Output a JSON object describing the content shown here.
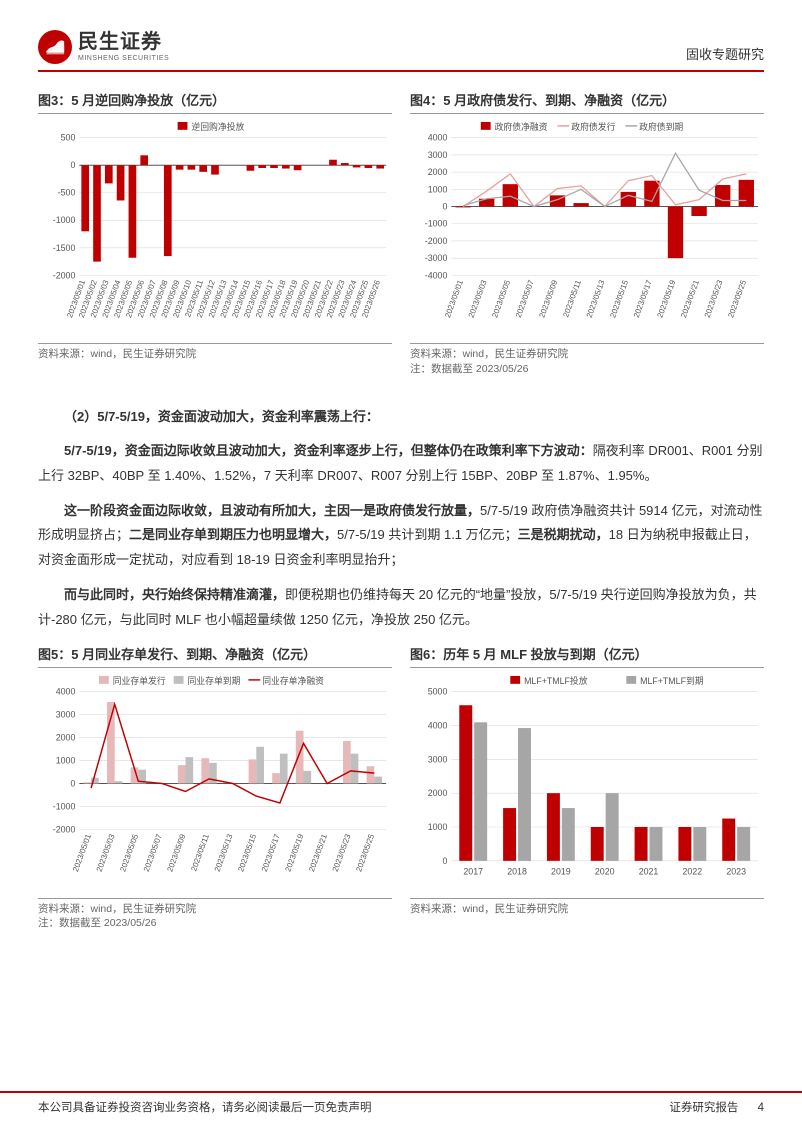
{
  "header": {
    "company_cn": "民生证券",
    "company_en": "MINSHENG SECURITIES",
    "doc_type": "固收专题研究"
  },
  "chart3": {
    "title": "图3：5 月逆回购净投放（亿元）",
    "type": "bar",
    "legend_label": "逆回购净投放",
    "bar_color": "#c00000",
    "grid_color": "#d9d9d9",
    "axis_color": "#555555",
    "background_color": "#ffffff",
    "categories": [
      "2023/05/01",
      "2023/05/02",
      "2023/05/03",
      "2023/05/04",
      "2023/05/05",
      "2023/05/06",
      "2023/05/07",
      "2023/05/08",
      "2023/05/09",
      "2023/05/10",
      "2023/05/11",
      "2023/05/12",
      "2023/05/13",
      "2023/05/14",
      "2023/05/15",
      "2023/05/16",
      "2023/05/17",
      "2023/05/18",
      "2023/05/19",
      "2023/05/20",
      "2023/05/21",
      "2023/05/22",
      "2023/05/23",
      "2023/05/24",
      "2023/05/25",
      "2023/05/26"
    ],
    "values": [
      -1200,
      -1750,
      -330,
      -640,
      -1680,
      180,
      0,
      -1650,
      -80,
      -80,
      -120,
      -170,
      0,
      0,
      -100,
      -50,
      -50,
      -60,
      -90,
      0,
      0,
      100,
      40,
      -40,
      -50,
      -60
    ],
    "ylim": [
      -2000,
      500
    ],
    "ytick_step": 500,
    "source": "资料来源：wind，民生证券研究院"
  },
  "chart4": {
    "title": "图4：5 月政府债发行、到期、净融资（亿元）",
    "type": "bar-line",
    "series": [
      {
        "name": "政府债净融资",
        "type": "bar",
        "color": "#c00000"
      },
      {
        "name": "政府债发行",
        "type": "line",
        "color": "#e6a0a0"
      },
      {
        "name": "政府债到期",
        "type": "line",
        "color": "#a6a6a6"
      }
    ],
    "grid_color": "#d9d9d9",
    "axis_color": "#555555",
    "background_color": "#ffffff",
    "categories": [
      "2023/05/01",
      "2023/05/03",
      "2023/05/05",
      "2023/05/07",
      "2023/05/09",
      "2023/05/11",
      "2023/05/13",
      "2023/05/15",
      "2023/05/17",
      "2023/05/19",
      "2023/05/21",
      "2023/05/23",
      "2023/05/25"
    ],
    "net": [
      -50,
      450,
      1300,
      0,
      650,
      200,
      0,
      850,
      1500,
      -3000,
      -550,
      1250,
      1550
    ],
    "issue": [
      0,
      900,
      1900,
      0,
      1050,
      1200,
      0,
      1500,
      1800,
      100,
      400,
      1600,
      1900
    ],
    "due": [
      50,
      450,
      600,
      0,
      400,
      1000,
      0,
      650,
      300,
      3100,
      950,
      350,
      350
    ],
    "ylim": [
      -4000,
      4000
    ],
    "ytick_step": 1000,
    "source": "资料来源：wind，民生证券研究院",
    "source_note": "注：数据截至 2023/05/26"
  },
  "body": {
    "heading": "（2）5/7-5/19，资金面波动加大，资金利率震荡上行：",
    "p1a": "5/7-5/19，资金面边际收敛且波动加大，资金利率逐步上行，但整体仍在政策利率下方波动：",
    "p1b": "隔夜利率 DR001、R001 分别上行 32BP、40BP 至 1.40%、1.52%，7 天利率 DR007、R007 分别上行 15BP、20BP 至 1.87%、1.95%。",
    "p2a": "这一阶段资金面边际收敛，且波动有所加大，主因一是政府债发行放量，",
    "p2b": "5/7-5/19 政府债净融资共计 5914 亿元，对流动性形成明显挤占；",
    "p2c": "二是同业存单到期压力也明显增大，",
    "p2d": "5/7-5/19 共计到期 1.1 万亿元；",
    "p2e": "三是税期扰动，",
    "p2f": "18 日为纳税申报截止日，对资金面形成一定扰动，对应看到 18-19 日资金利率明显抬升；",
    "p3a": "而与此同时，央行始终保持精准滴灌，",
    "p3b": "即便税期也仍维持每天 20 亿元的“地量”投放，5/7-5/19 央行逆回购净投放为负，共计-280 亿元，与此同时 MLF 也小幅超量续做 1250 亿元，净投放 250 亿元。"
  },
  "chart5": {
    "title": "图5：5 月同业存单发行、到期、净融资（亿元）",
    "type": "bar-line",
    "series": [
      {
        "name": "同业存单发行",
        "type": "bar",
        "color": "#e6b8b7"
      },
      {
        "name": "同业存单到期",
        "type": "bar",
        "color": "#bfbfbf"
      },
      {
        "name": "同业存单净融资",
        "type": "line",
        "color": "#c00000"
      }
    ],
    "grid_color": "#d9d9d9",
    "axis_color": "#555555",
    "background_color": "#ffffff",
    "categories": [
      "2023/05/01",
      "2023/05/03",
      "2023/05/05",
      "2023/05/07",
      "2023/05/09",
      "2023/05/11",
      "2023/05/13",
      "2023/05/15",
      "2023/05/17",
      "2023/05/19",
      "2023/05/21",
      "2023/05/23",
      "2023/05/25"
    ],
    "issue": [
      50,
      3550,
      700,
      0,
      800,
      1100,
      0,
      1050,
      450,
      2300,
      0,
      1850,
      750
    ],
    "due": [
      250,
      100,
      600,
      0,
      1150,
      900,
      0,
      1600,
      1300,
      550,
      0,
      1300,
      300
    ],
    "net": [
      -200,
      3450,
      100,
      0,
      -350,
      200,
      0,
      -550,
      -850,
      1750,
      0,
      550,
      450
    ],
    "ylim": [
      -2000,
      4000
    ],
    "ytick_step": 1000,
    "source": "资料来源：wind，民生证券研究院",
    "source_note": "注：数据截至 2023/05/26"
  },
  "chart6": {
    "title": "图6：历年 5 月 MLF 投放与到期（亿元）",
    "type": "grouped-bar",
    "series": [
      {
        "name": "MLF+TMLF投放",
        "color": "#c00000"
      },
      {
        "name": "MLF+TMLF到期",
        "color": "#a6a6a6"
      }
    ],
    "grid_color": "#d9d9d9",
    "axis_color": "#555555",
    "background_color": "#ffffff",
    "categories": [
      "2017",
      "2018",
      "2019",
      "2020",
      "2021",
      "2022",
      "2023"
    ],
    "put": [
      4600,
      1560,
      2000,
      1000,
      1000,
      1000,
      1250
    ],
    "due": [
      4095,
      3925,
      1560,
      2000,
      1000,
      1000,
      1000
    ],
    "ylim": [
      0,
      5000
    ],
    "ytick_step": 1000,
    "source": "资料来源：wind，民生证券研究院"
  },
  "footer": {
    "left": "本公司具备证券投资咨询业务资格，请务必阅读最后一页免责声明",
    "right": "证券研究报告",
    "page": "4"
  }
}
